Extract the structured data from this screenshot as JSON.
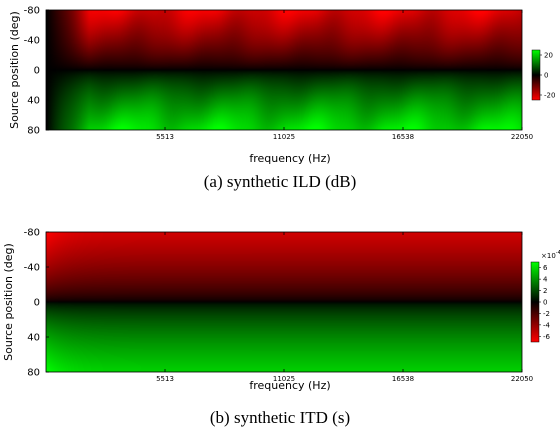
{
  "chart_data": [
    {
      "type": "heatmap",
      "caption": "(a) synthetic ILD (dB)",
      "xlabel": "frequency (Hz)",
      "ylabel": "Source position (deg)",
      "x_ticks": [
        "5513",
        "11025",
        "16538",
        "22050"
      ],
      "y_ticks": [
        "-80",
        "-40",
        "0",
        "40",
        "80"
      ],
      "xlim": [
        0,
        22050
      ],
      "ylim": [
        -80,
        80
      ],
      "colorbar": {
        "ticks": [
          "20",
          "0",
          "-20"
        ],
        "range": [
          -25,
          25
        ],
        "exponent": ""
      },
      "colormap": {
        "negative": "#ff0000",
        "zero": "#000000",
        "positive": "#00ff00"
      },
      "pattern": "Value is 0 at source position 0 and grows in magnitude toward -80 (red, negative) and +80 (green, positive); magnitude is near 0 at the lowest frequencies and increases with frequency, with slight ripples."
    },
    {
      "type": "heatmap",
      "caption": "(b) synthetic ITD (s)",
      "xlabel": "frequency (Hz)",
      "ylabel": "Source position (deg)",
      "x_ticks": [
        "5513",
        "11025",
        "16538",
        "22050"
      ],
      "y_ticks": [
        "-80",
        "-40",
        "0",
        "40",
        "80"
      ],
      "xlim": [
        0,
        22050
      ],
      "ylim": [
        -80,
        80
      ],
      "colorbar": {
        "ticks": [
          "6",
          "4",
          "2",
          "0",
          "-2",
          "-4",
          "-6"
        ],
        "range": [
          -7,
          7
        ],
        "exponent": "x10^-4"
      },
      "colormap": {
        "negative": "#ff0000",
        "zero": "#000000",
        "positive": "#00ff00"
      },
      "pattern": "Value is 0 at source position 0 and increases in magnitude toward -80 (red) and +80 (green); nearly constant across frequency, slightly stronger at the lowest frequencies."
    }
  ]
}
